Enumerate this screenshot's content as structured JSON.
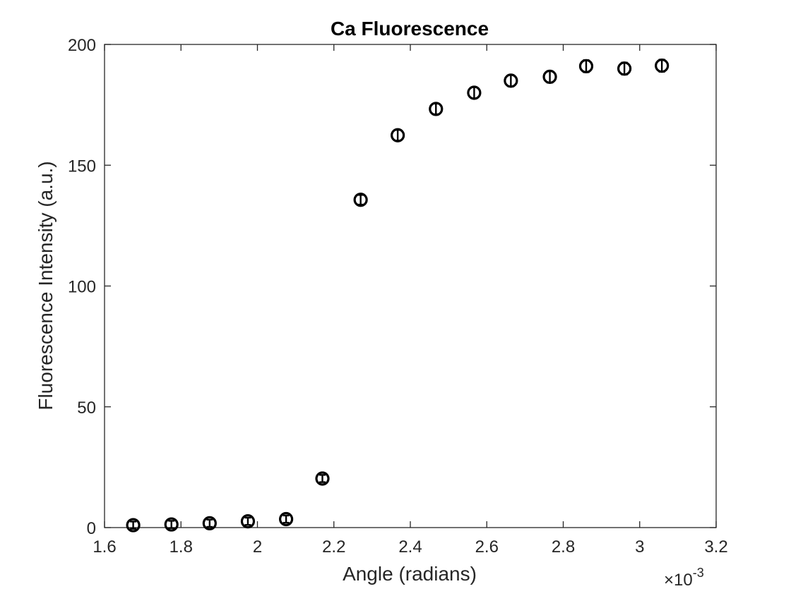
{
  "chart_data": {
    "type": "scatter",
    "title": "Ca Fluorescence",
    "xlabel": "Angle (radians)",
    "ylabel": "Fluorescence Intensity (a.u.)",
    "x_exponent_label": "×10",
    "x_exponent_power": "-3",
    "x_scale_factor": 0.001,
    "xlim": [
      1.6,
      3.2
    ],
    "ylim": [
      0,
      200
    ],
    "x_ticks": [
      1.6,
      1.8,
      2,
      2.2,
      2.4,
      2.6,
      2.8,
      3,
      3.2
    ],
    "x_tick_labels": [
      "1.6",
      "1.8",
      "2",
      "2.2",
      "2.4",
      "2.6",
      "2.8",
      "3",
      "3.2"
    ],
    "y_ticks": [
      0,
      50,
      100,
      150,
      200
    ],
    "y_tick_labels": [
      "0",
      "50",
      "100",
      "150",
      "200"
    ],
    "grid": false,
    "marker": "circle",
    "series": [
      {
        "color": "#000000",
        "points": [
          {
            "x": 1.675,
            "y": 1.0,
            "err": 1.5
          },
          {
            "x": 1.775,
            "y": 1.3,
            "err": 1.5
          },
          {
            "x": 1.875,
            "y": 1.8,
            "err": 1.5
          },
          {
            "x": 1.975,
            "y": 2.6,
            "err": 1.5
          },
          {
            "x": 2.075,
            "y": 3.5,
            "err": 1.5
          },
          {
            "x": 2.17,
            "y": 20.3,
            "err": 1.5
          },
          {
            "x": 2.27,
            "y": 135.7,
            "err": 2.0
          },
          {
            "x": 2.367,
            "y": 162.4,
            "err": 2.2
          },
          {
            "x": 2.467,
            "y": 173.3,
            "err": 2.2
          },
          {
            "x": 2.567,
            "y": 180.0,
            "err": 2.3
          },
          {
            "x": 2.663,
            "y": 185.0,
            "err": 2.4
          },
          {
            "x": 2.765,
            "y": 186.6,
            "err": 2.4
          },
          {
            "x": 2.86,
            "y": 191.0,
            "err": 2.5
          },
          {
            "x": 2.96,
            "y": 190.0,
            "err": 2.5
          },
          {
            "x": 3.058,
            "y": 191.2,
            "err": 2.5
          }
        ]
      }
    ]
  }
}
